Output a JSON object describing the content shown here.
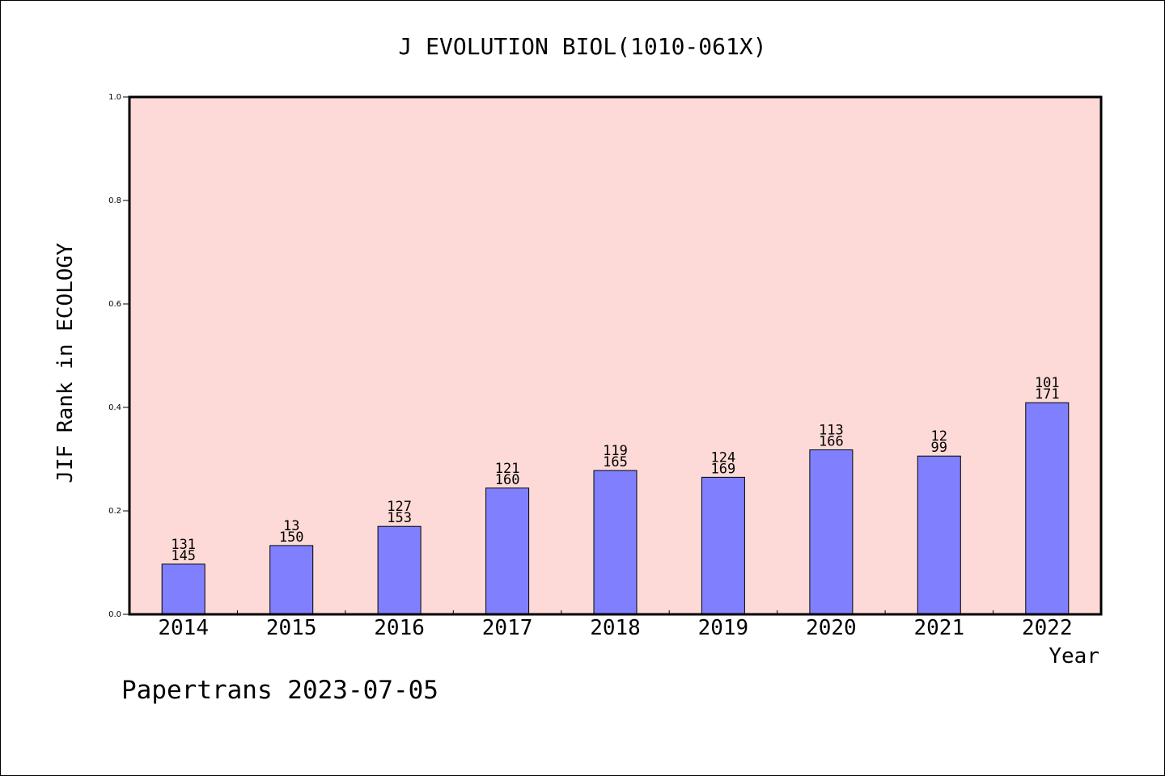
{
  "chart_data": {
    "type": "bar",
    "title": "J EVOLUTION BIOL(1010-061X)",
    "xlabel": "Year",
    "ylabel": "JIF Rank in ECOLOGY",
    "ylim": [
      0,
      1.0
    ],
    "yticks": [
      "0.0",
      "0.2",
      "0.4",
      "0.6",
      "0.8",
      "1.0"
    ],
    "categories": [
      "2014",
      "2015",
      "2016",
      "2017",
      "2018",
      "2019",
      "2020",
      "2021",
      "2022"
    ],
    "values": [
      0.097,
      0.133,
      0.17,
      0.244,
      0.278,
      0.265,
      0.318,
      0.306,
      0.409
    ],
    "labels_top": [
      "131",
      "13",
      "127",
      "121",
      "119",
      "124",
      "113",
      "12",
      "101"
    ],
    "labels_bottom": [
      "145",
      "150",
      "153",
      "160",
      "165",
      "169",
      "166",
      "99",
      "171"
    ],
    "grid": false,
    "colors": {
      "bar": "#8080ff",
      "plot_background": "#fddad7",
      "axis": "#000000"
    }
  },
  "footer": {
    "credit": "Papertrans 2023-07-05"
  }
}
